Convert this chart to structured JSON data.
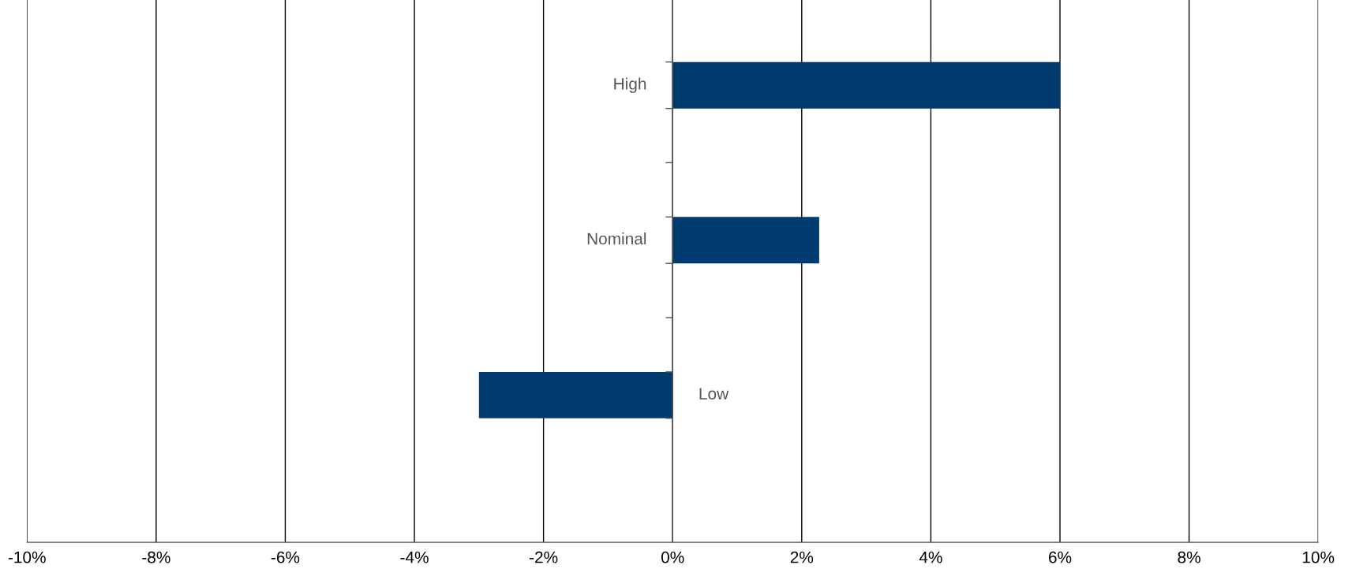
{
  "chart_data": {
    "type": "bar",
    "orientation": "horizontal",
    "categories": [
      "High",
      "Nominal",
      "Low"
    ],
    "values": [
      6,
      2.27,
      -3.0
    ],
    "color": "#003b6f",
    "xlim": [
      -10,
      10
    ],
    "xticks": [
      {
        "value": -10,
        "label": "-10%"
      },
      {
        "value": -8,
        "label": "-8%"
      },
      {
        "value": -6,
        "label": "-6%"
      },
      {
        "value": -4,
        "label": "-4%"
      },
      {
        "value": -2,
        "label": "-2%"
      },
      {
        "value": 0,
        "label": "0%"
      },
      {
        "value": 2,
        "label": "2%"
      },
      {
        "value": 4,
        "label": "4%"
      },
      {
        "value": 6,
        "label": "6%"
      },
      {
        "value": 8,
        "label": "8%"
      },
      {
        "value": 10,
        "label": "10%"
      }
    ],
    "grid": "x",
    "legend": false
  }
}
